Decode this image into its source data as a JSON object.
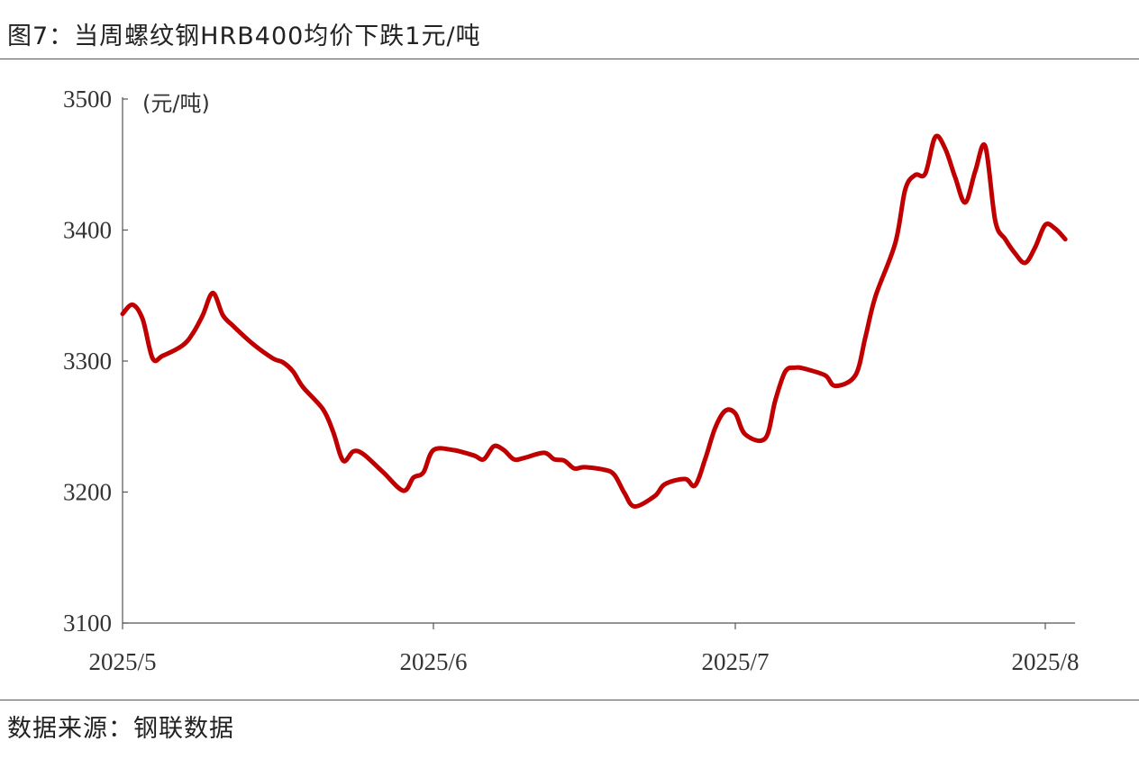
{
  "title": "图7：当周螺纹钢HRB400均价下跌1元/吨",
  "source": "数据来源：钢联数据",
  "chart_data": {
    "type": "line",
    "title": "图7：当周螺纹钢HRB400均价下跌1元/吨",
    "unit_label": "(元/吨)",
    "xlabel": "",
    "ylabel": "",
    "ylim": [
      3100,
      3500
    ],
    "yticks": [
      3100,
      3200,
      3300,
      3400,
      3500
    ],
    "xticks": [
      {
        "date": "2025-05-01",
        "label": "2025/5"
      },
      {
        "date": "2025-06-01",
        "label": "2025/6"
      },
      {
        "date": "2025-07-01",
        "label": "2025/7"
      },
      {
        "date": "2025-08-01",
        "label": "2025/8"
      }
    ],
    "grid": false,
    "line_color": "#C00000",
    "series": [
      {
        "points": [
          [
            "2025-05-01",
            3336
          ],
          [
            "2025-05-02",
            3343
          ],
          [
            "2025-05-03",
            3332
          ],
          [
            "2025-05-04",
            3302
          ],
          [
            "2025-05-05",
            3304
          ],
          [
            "2025-05-07",
            3312
          ],
          [
            "2025-05-08",
            3321
          ],
          [
            "2025-05-09",
            3335
          ],
          [
            "2025-05-10",
            3352
          ],
          [
            "2025-05-11",
            3335
          ],
          [
            "2025-05-12",
            3327
          ],
          [
            "2025-05-14",
            3313
          ],
          [
            "2025-05-16",
            3302
          ],
          [
            "2025-05-17",
            3299
          ],
          [
            "2025-05-18",
            3292
          ],
          [
            "2025-05-19",
            3280
          ],
          [
            "2025-05-21",
            3263
          ],
          [
            "2025-05-22",
            3246
          ],
          [
            "2025-05-23",
            3224
          ],
          [
            "2025-05-24",
            3231
          ],
          [
            "2025-05-25",
            3229
          ],
          [
            "2025-05-27",
            3215
          ],
          [
            "2025-05-29",
            3201
          ],
          [
            "2025-05-30",
            3211
          ],
          [
            "2025-05-31",
            3215
          ],
          [
            "2025-06-01",
            3232
          ],
          [
            "2025-06-03",
            3232
          ],
          [
            "2025-06-05",
            3228
          ],
          [
            "2025-06-06",
            3225
          ],
          [
            "2025-06-07",
            3235
          ],
          [
            "2025-06-08",
            3232
          ],
          [
            "2025-06-09",
            3225
          ],
          [
            "2025-06-10",
            3226
          ],
          [
            "2025-06-12",
            3230
          ],
          [
            "2025-06-13",
            3225
          ],
          [
            "2025-06-14",
            3224
          ],
          [
            "2025-06-15",
            3218
          ],
          [
            "2025-06-16",
            3219
          ],
          [
            "2025-06-18",
            3217
          ],
          [
            "2025-06-19",
            3213
          ],
          [
            "2025-06-20",
            3199
          ],
          [
            "2025-06-21",
            3189
          ],
          [
            "2025-06-23",
            3197
          ],
          [
            "2025-06-24",
            3206
          ],
          [
            "2025-06-26",
            3210
          ],
          [
            "2025-06-27",
            3205
          ],
          [
            "2025-06-28",
            3225
          ],
          [
            "2025-06-29",
            3249
          ],
          [
            "2025-06-30",
            3262
          ],
          [
            "2025-07-01",
            3260
          ],
          [
            "2025-07-02",
            3244
          ],
          [
            "2025-07-04",
            3241
          ],
          [
            "2025-07-05",
            3270
          ],
          [
            "2025-07-06",
            3292
          ],
          [
            "2025-07-07",
            3295
          ],
          [
            "2025-07-08",
            3294
          ],
          [
            "2025-07-10",
            3289
          ],
          [
            "2025-07-11",
            3281
          ],
          [
            "2025-07-13",
            3289
          ],
          [
            "2025-07-14",
            3318
          ],
          [
            "2025-07-15",
            3349
          ],
          [
            "2025-07-17",
            3390
          ],
          [
            "2025-07-18",
            3431
          ],
          [
            "2025-07-19",
            3442
          ],
          [
            "2025-07-20",
            3443
          ],
          [
            "2025-07-21",
            3471
          ],
          [
            "2025-07-22",
            3462
          ],
          [
            "2025-07-23",
            3440
          ],
          [
            "2025-07-24",
            3421
          ],
          [
            "2025-07-25",
            3445
          ],
          [
            "2025-07-26",
            3464
          ],
          [
            "2025-07-27",
            3407
          ],
          [
            "2025-07-28",
            3393
          ],
          [
            "2025-07-29",
            3382
          ],
          [
            "2025-07-30",
            3375
          ],
          [
            "2025-07-31",
            3387
          ],
          [
            "2025-08-01",
            3404
          ],
          [
            "2025-08-02",
            3401
          ],
          [
            "2025-08-03",
            3393
          ]
        ]
      }
    ]
  }
}
